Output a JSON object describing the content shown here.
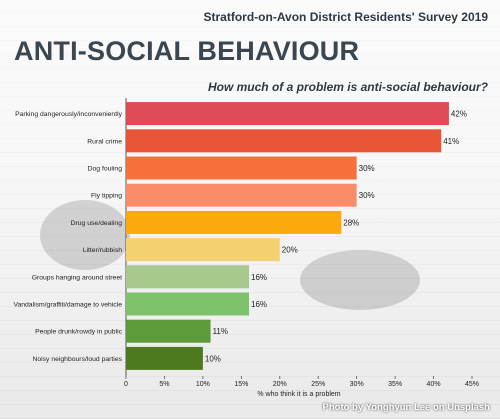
{
  "header": {
    "survey": "Stratford-on-Avon District Residents' Survey 2019",
    "title": "ANTI-SOCIAL BEHAVIOUR",
    "question": "How much of a problem is anti-social behaviour?"
  },
  "credit": "Photo by Yonghyun Lee on Unsplash",
  "chart_data": {
    "type": "bar",
    "orientation": "horizontal",
    "categories": [
      "Parking dangerously/inconveniently",
      "Rural crime",
      "Dog fouling",
      "Fly tipping",
      "Drug use/dealing",
      "Litter/rubbish",
      "Groups hanging around street",
      "Vandalism/graffiti/damage to vehicle",
      "People drunk/rowdy in public",
      "Noisy neighbours/loud parties"
    ],
    "values": [
      42,
      41,
      30,
      30,
      28,
      20,
      16,
      16,
      11,
      10
    ],
    "value_labels": [
      "42%",
      "41%",
      "30%",
      "30%",
      "28%",
      "20%",
      "16%",
      "16%",
      "11%",
      "10%"
    ],
    "colors": [
      "#de4b57",
      "#e65535",
      "#f5703a",
      "#fb8c6a",
      "#fbaa0e",
      "#f4d070",
      "#a8c98c",
      "#7ec36b",
      "#5d9b3a",
      "#4e7a1f"
    ],
    "xlabel": "% who think it is a problem",
    "xlim": [
      0,
      45
    ],
    "xticks": [
      0,
      5,
      10,
      15,
      20,
      25,
      30,
      35,
      40,
      45
    ],
    "xtick_labels": [
      "0",
      "5%",
      "10%",
      "15%",
      "20%",
      "25%",
      "30%",
      "35%",
      "40%",
      "45%"
    ],
    "grid": false
  }
}
